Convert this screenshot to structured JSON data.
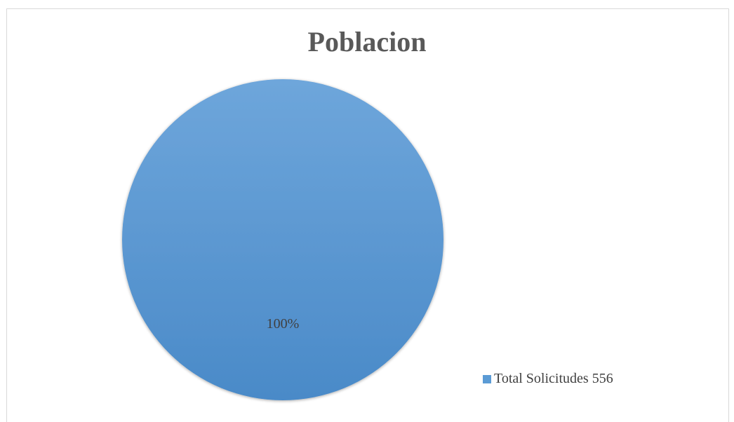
{
  "chart_data": {
    "type": "pie",
    "title": "Poblacion",
    "categories": [
      "Total Solicitudes 556"
    ],
    "values": [
      100
    ],
    "data_labels": [
      "100%"
    ],
    "legend": {
      "position": "bottom-right",
      "entries": [
        "Total Solicitudes 556"
      ]
    },
    "colors": {
      "slice": "#5b9bd5",
      "slice_light": "#6ea6db",
      "slice_dark": "#4a8ac8"
    }
  }
}
